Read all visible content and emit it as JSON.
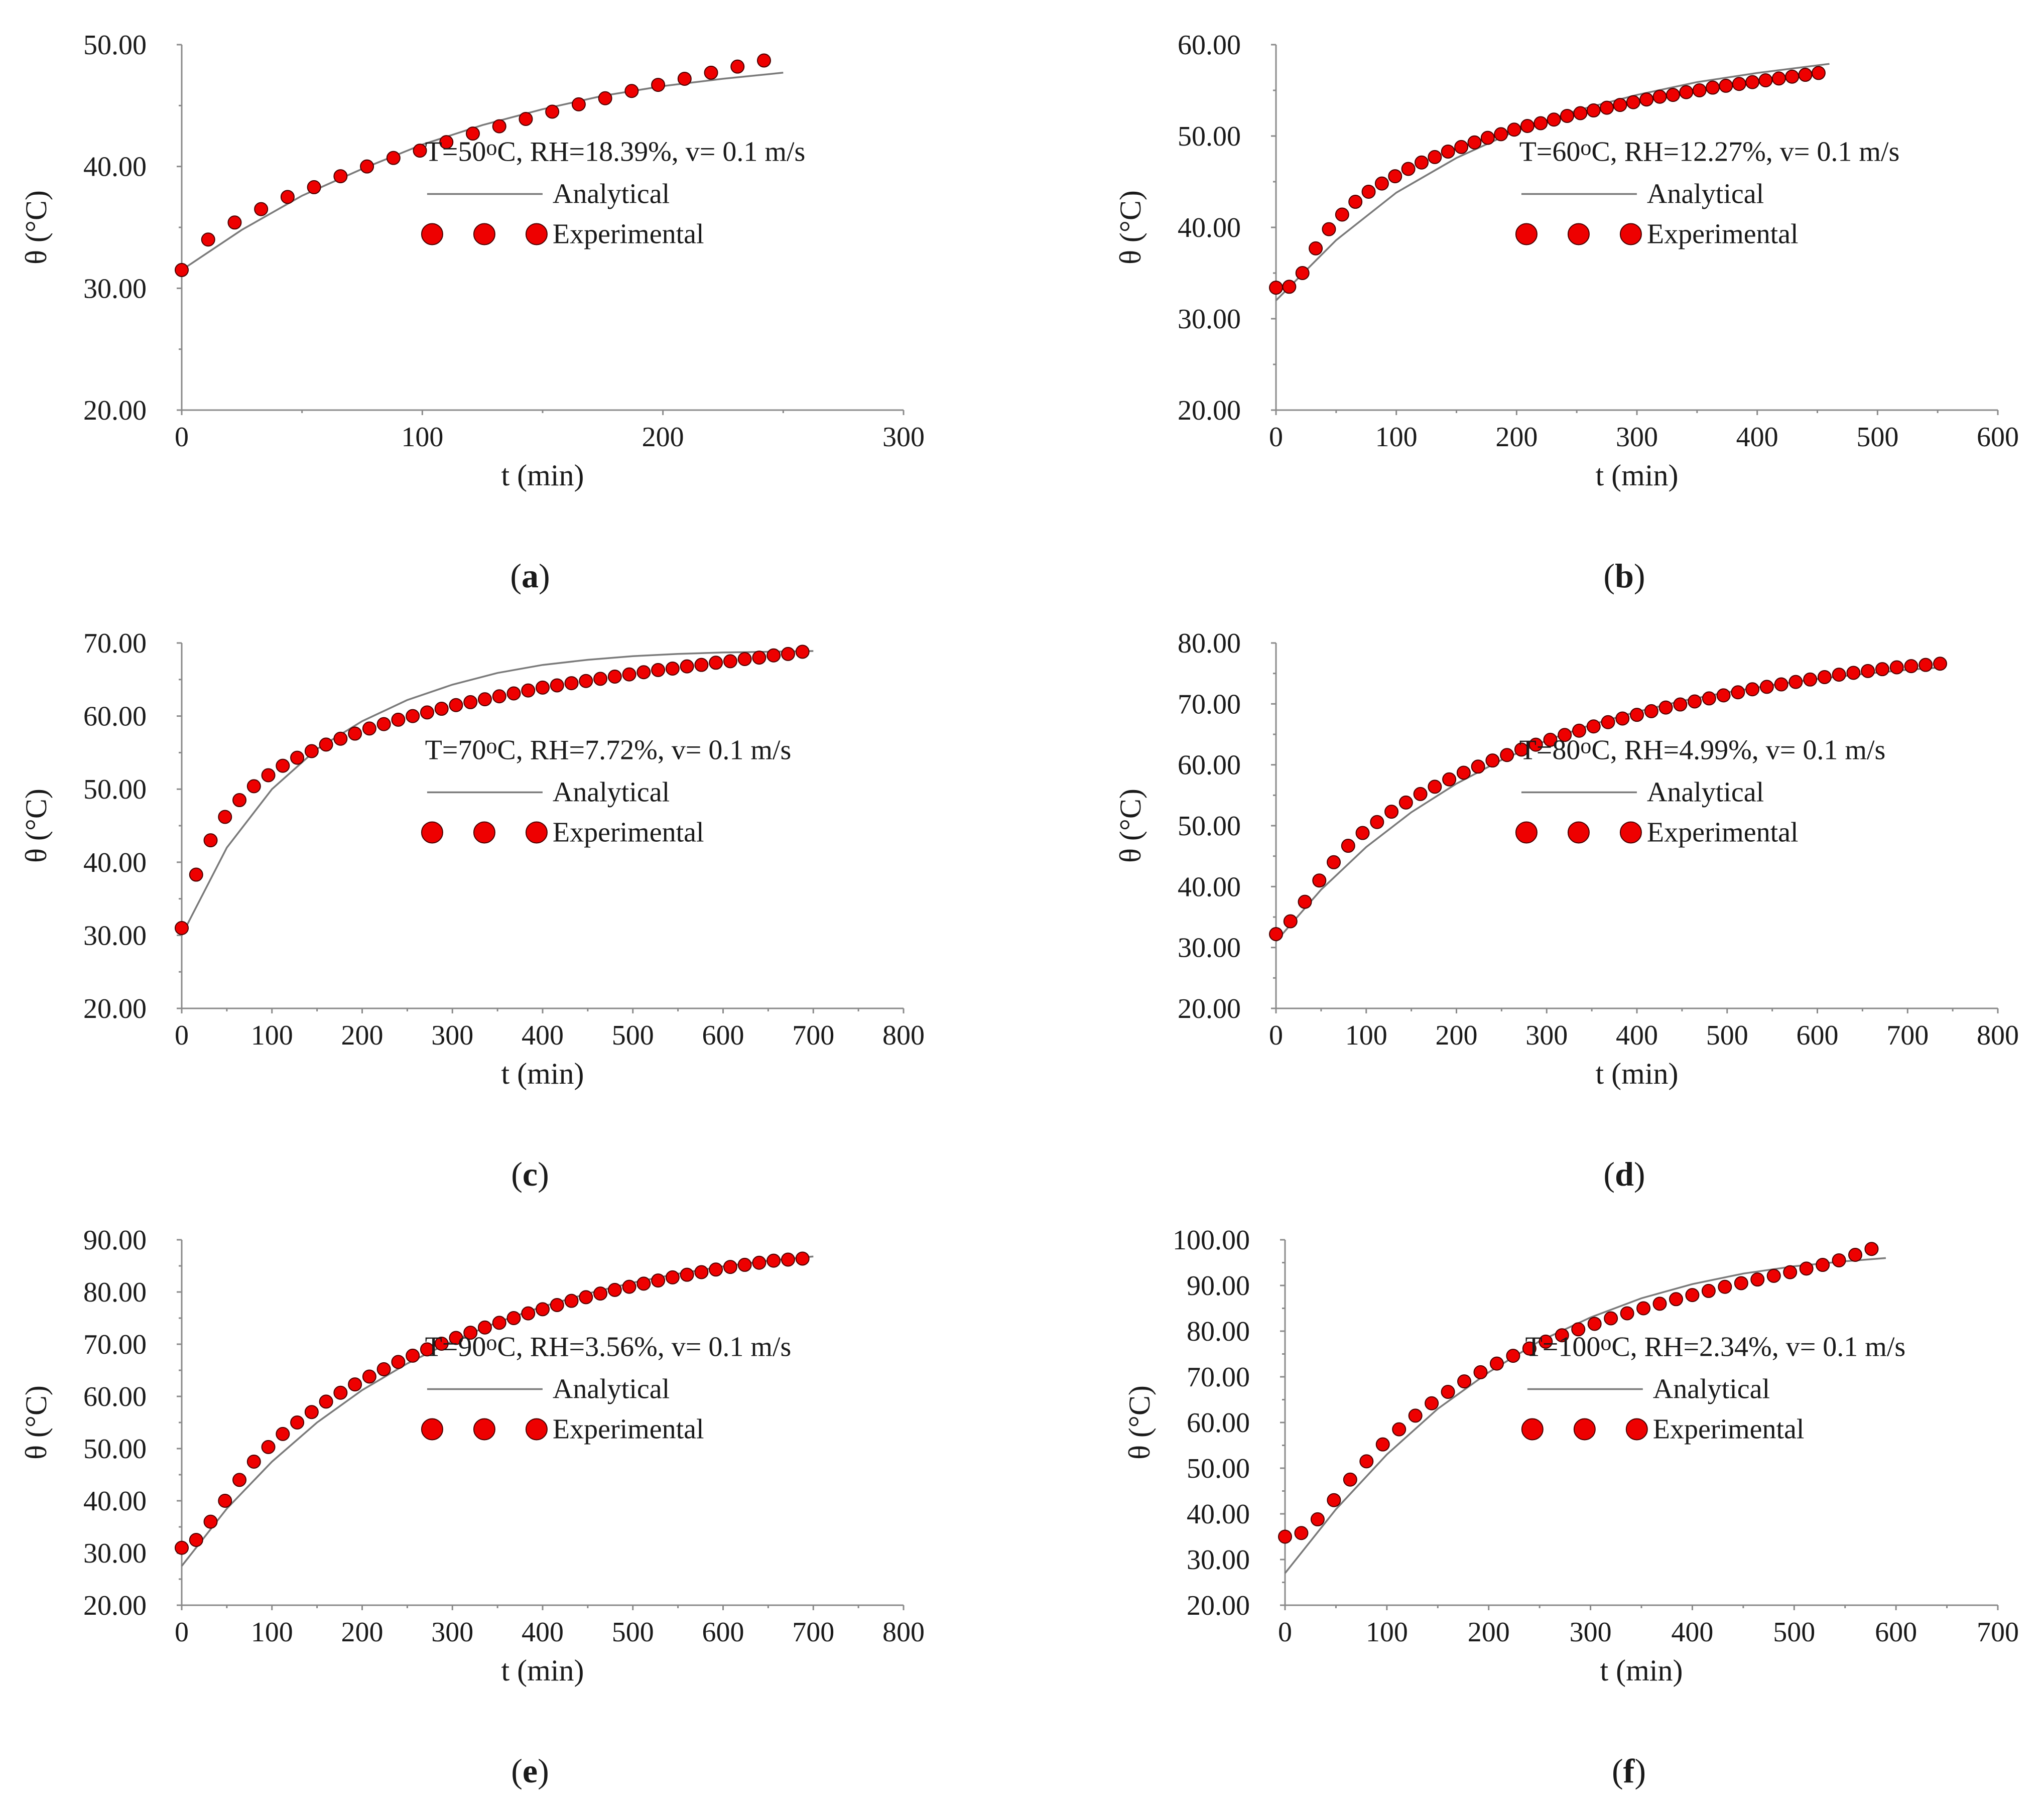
{
  "chart_data": [
    {
      "type": "line",
      "caption": "a",
      "annotation_prefix": "T=50",
      "annotation_super": "o",
      "annotation_suffix": "C, RH=18.39%, v= 0.1 m/s",
      "xlabel": "t (min)",
      "ylabel": "θ (°C)",
      "xlim": [
        0,
        300
      ],
      "ylim": [
        20,
        50
      ],
      "xticks": [
        0,
        100,
        200,
        300
      ],
      "yticks": [
        20,
        30,
        40,
        50
      ],
      "xtick_labels": [
        "0",
        "100",
        "200",
        "300"
      ],
      "ytick_labels": [
        "20.00",
        "30.00",
        "40.00",
        "50.00"
      ],
      "legend": [
        "Analytical",
        "Experimental"
      ],
      "analytical": {
        "x": [
          0,
          25,
          50,
          75,
          100,
          125,
          150,
          175,
          200,
          225,
          250
        ],
        "y": [
          31.5,
          34.8,
          37.6,
          39.8,
          41.8,
          43.4,
          44.7,
          45.8,
          46.6,
          47.2,
          47.7
        ]
      },
      "experimental": {
        "x": [
          0,
          11,
          22,
          33,
          44,
          55,
          66,
          77,
          88,
          99,
          110,
          121,
          132,
          143,
          154,
          165,
          176,
          187,
          198,
          209,
          220,
          231,
          242
        ],
        "y": [
          31.5,
          34.0,
          35.4,
          36.5,
          37.5,
          38.3,
          39.2,
          40.0,
          40.7,
          41.3,
          42.0,
          42.7,
          43.3,
          43.9,
          44.5,
          45.1,
          45.6,
          46.2,
          46.7,
          47.2,
          47.7,
          48.2,
          48.7
        ]
      }
    },
    {
      "type": "line",
      "caption": "b",
      "annotation_prefix": "T=60",
      "annotation_super": "o",
      "annotation_suffix": "C, RH=12.27%, v= 0.1 m/s",
      "xlabel": "t (min)",
      "ylabel": "θ (°C)",
      "xlim": [
        0,
        600
      ],
      "ylim": [
        20,
        60
      ],
      "xticks": [
        0,
        100,
        200,
        300,
        400,
        500,
        600
      ],
      "yticks": [
        20,
        30,
        40,
        50,
        60
      ],
      "xtick_labels": [
        "0",
        "100",
        "200",
        "300",
        "400",
        "500",
        "600"
      ],
      "ytick_labels": [
        "20.00",
        "30.00",
        "40.00",
        "50.00",
        "60.00"
      ],
      "legend": [
        "Analytical",
        "Experimental"
      ],
      "analytical": {
        "x": [
          0,
          50,
          100,
          150,
          200,
          250,
          300,
          350,
          400,
          460
        ],
        "y": [
          32.0,
          38.6,
          43.8,
          47.6,
          50.6,
          52.8,
          54.5,
          55.9,
          56.9,
          57.9
        ]
      },
      "experimental": {
        "x": [
          0,
          11,
          22,
          33,
          44,
          55,
          66,
          77,
          88,
          99,
          110,
          121,
          132,
          143,
          154,
          165,
          176,
          187,
          198,
          209,
          220,
          231,
          242,
          253,
          264,
          275,
          286,
          297,
          308,
          319,
          330,
          341,
          352,
          363,
          374,
          385,
          396,
          407,
          418,
          429,
          440,
          451
        ],
        "y": [
          33.4,
          33.5,
          35.0,
          37.7,
          39.8,
          41.4,
          42.8,
          43.9,
          44.8,
          45.6,
          46.4,
          47.1,
          47.7,
          48.3,
          48.8,
          49.3,
          49.8,
          50.2,
          50.7,
          51.1,
          51.4,
          51.8,
          52.2,
          52.5,
          52.8,
          53.1,
          53.4,
          53.7,
          54.0,
          54.3,
          54.5,
          54.8,
          55.0,
          55.3,
          55.5,
          55.7,
          55.9,
          56.1,
          56.3,
          56.5,
          56.7,
          56.9
        ]
      }
    },
    {
      "type": "line",
      "caption": "c",
      "annotation_prefix": "T=70",
      "annotation_super": "o",
      "annotation_suffix": "C, RH=7.72%, v= 0.1 m/s",
      "xlabel": "t (min)",
      "ylabel": "θ (°C)",
      "xlim": [
        0,
        800
      ],
      "ylim": [
        20,
        70
      ],
      "xticks": [
        0,
        100,
        200,
        300,
        400,
        500,
        600,
        700,
        800
      ],
      "yticks": [
        20,
        30,
        40,
        50,
        60,
        70
      ],
      "xtick_labels": [
        "0",
        "100",
        "200",
        "300",
        "400",
        "500",
        "600",
        "700",
        "800"
      ],
      "ytick_labels": [
        "20.00",
        "30.00",
        "40.00",
        "50.00",
        "60.00",
        "70.00"
      ],
      "legend": [
        "Analytical",
        "Experimental"
      ],
      "analytical": {
        "x": [
          0,
          50,
          100,
          150,
          200,
          250,
          300,
          350,
          400,
          450,
          500,
          550,
          600,
          650,
          700
        ],
        "y": [
          30.0,
          42.0,
          50.0,
          55.5,
          59.3,
          62.2,
          64.3,
          65.9,
          67.0,
          67.7,
          68.2,
          68.5,
          68.7,
          68.8,
          68.9
        ]
      },
      "experimental": {
        "x": [
          0,
          16,
          32,
          48,
          64,
          80,
          96,
          112,
          128,
          144,
          160,
          176,
          192,
          208,
          224,
          240,
          256,
          272,
          288,
          304,
          320,
          336,
          352,
          368,
          384,
          400,
          416,
          432,
          448,
          464,
          480,
          496,
          512,
          528,
          544,
          560,
          576,
          592,
          608,
          624,
          640,
          656,
          672,
          688
        ],
        "y": [
          31.0,
          38.3,
          43.0,
          46.2,
          48.5,
          50.4,
          51.9,
          53.2,
          54.3,
          55.2,
          56.1,
          56.9,
          57.6,
          58.3,
          58.9,
          59.5,
          60.0,
          60.5,
          61.0,
          61.5,
          61.9,
          62.3,
          62.7,
          63.1,
          63.5,
          63.9,
          64.2,
          64.5,
          64.8,
          65.1,
          65.4,
          65.7,
          66.0,
          66.3,
          66.5,
          66.8,
          67.0,
          67.3,
          67.5,
          67.8,
          68.0,
          68.3,
          68.5,
          68.8
        ]
      }
    },
    {
      "type": "line",
      "caption": "d",
      "annotation_prefix": "T=80",
      "annotation_super": "o",
      "annotation_suffix": "C, RH=4.99%, v= 0.1 m/s",
      "xlabel": "t (min)",
      "ylabel": "θ (°C)",
      "xlim": [
        0,
        800
      ],
      "ylim": [
        20,
        80
      ],
      "xticks": [
        0,
        100,
        200,
        300,
        400,
        500,
        600,
        700,
        800
      ],
      "yticks": [
        20,
        30,
        40,
        50,
        60,
        70,
        80
      ],
      "xtick_labels": [
        "0",
        "100",
        "200",
        "300",
        "400",
        "500",
        "600",
        "700",
        "800"
      ],
      "ytick_labels": [
        "20.00",
        "30.00",
        "40.00",
        "50.00",
        "60.00",
        "70.00",
        "80.00"
      ],
      "legend": [
        "Analytical",
        "Experimental"
      ],
      "analytical": {
        "x": [
          0,
          50,
          100,
          150,
          200,
          250,
          300,
          350,
          400,
          450,
          500,
          550,
          600,
          650,
          700,
          740
        ],
        "y": [
          31.0,
          39.5,
          46.5,
          52.2,
          56.9,
          60.8,
          64.0,
          66.6,
          68.7,
          70.5,
          71.9,
          73.1,
          74.1,
          74.9,
          75.6,
          76.0
        ]
      },
      "experimental": {
        "x": [
          0,
          16,
          32,
          48,
          64,
          80,
          96,
          112,
          128,
          144,
          160,
          176,
          192,
          208,
          224,
          240,
          256,
          272,
          288,
          304,
          320,
          336,
          352,
          368,
          384,
          400,
          416,
          432,
          448,
          464,
          480,
          496,
          512,
          528,
          544,
          560,
          576,
          592,
          608,
          624,
          640,
          656,
          672,
          688,
          704,
          720,
          736
        ],
        "y": [
          32.2,
          34.3,
          37.5,
          41.0,
          44.0,
          46.7,
          48.8,
          50.6,
          52.3,
          53.8,
          55.2,
          56.4,
          57.6,
          58.7,
          59.7,
          60.7,
          61.6,
          62.5,
          63.3,
          64.1,
          64.9,
          65.6,
          66.3,
          67.0,
          67.6,
          68.2,
          68.8,
          69.4,
          69.9,
          70.4,
          70.9,
          71.4,
          71.9,
          72.4,
          72.8,
          73.2,
          73.6,
          74.0,
          74.4,
          74.8,
          75.1,
          75.4,
          75.7,
          76.0,
          76.2,
          76.4,
          76.6
        ]
      }
    },
    {
      "type": "line",
      "caption": "e",
      "annotation_prefix": "T=90",
      "annotation_super": "o",
      "annotation_suffix": "C, RH=3.56%, v= 0.1 m/s",
      "xlabel": "t (min)",
      "ylabel": "θ (°C)",
      "xlim": [
        0,
        800
      ],
      "ylim": [
        20,
        90
      ],
      "xticks": [
        0,
        100,
        200,
        300,
        400,
        500,
        600,
        700,
        800
      ],
      "yticks": [
        20,
        30,
        40,
        50,
        60,
        70,
        80,
        90
      ],
      "xtick_labels": [
        "0",
        "100",
        "200",
        "300",
        "400",
        "500",
        "600",
        "700",
        "800"
      ],
      "ytick_labels": [
        "20.00",
        "30.00",
        "40.00",
        "50.00",
        "60.00",
        "70.00",
        "80.00",
        "90.00"
      ],
      "legend": [
        "Analytical",
        "Experimental"
      ],
      "analytical": {
        "x": [
          0,
          50,
          100,
          150,
          200,
          250,
          300,
          350,
          400,
          450,
          500,
          550,
          600,
          650,
          700
        ],
        "y": [
          27.5,
          38.5,
          47.5,
          55.0,
          61.2,
          66.3,
          70.6,
          74.2,
          77.2,
          79.7,
          81.8,
          83.5,
          84.9,
          86.0,
          86.8
        ]
      },
      "experimental": {
        "x": [
          0,
          16,
          32,
          48,
          64,
          80,
          96,
          112,
          128,
          144,
          160,
          176,
          192,
          208,
          224,
          240,
          256,
          272,
          288,
          304,
          320,
          336,
          352,
          368,
          384,
          400,
          416,
          432,
          448,
          464,
          480,
          496,
          512,
          528,
          544,
          560,
          576,
          592,
          608,
          624,
          640,
          656,
          672,
          688
        ],
        "y": [
          31.0,
          32.5,
          36.0,
          40.0,
          44.0,
          47.5,
          50.3,
          52.8,
          55.0,
          57.0,
          59.0,
          60.7,
          62.3,
          63.8,
          65.2,
          66.6,
          67.8,
          69.0,
          70.1,
          71.2,
          72.2,
          73.2,
          74.1,
          75.0,
          75.9,
          76.7,
          77.5,
          78.3,
          79.0,
          79.7,
          80.4,
          81.0,
          81.6,
          82.2,
          82.8,
          83.3,
          83.8,
          84.3,
          84.8,
          85.2,
          85.6,
          86.0,
          86.2,
          86.4
        ]
      }
    },
    {
      "type": "line",
      "caption": "f",
      "annotation_prefix": "T=100",
      "annotation_super": "o",
      "annotation_suffix": "C, RH=2.34%, v= 0.1 m/s",
      "xlabel": "t (min)",
      "ylabel": "θ (°C)",
      "xlim": [
        0,
        700
      ],
      "ylim": [
        20,
        100
      ],
      "xticks": [
        0,
        100,
        200,
        300,
        400,
        500,
        600,
        700
      ],
      "yticks": [
        20,
        30,
        40,
        50,
        60,
        70,
        80,
        90,
        100
      ],
      "xtick_labels": [
        "0",
        "100",
        "200",
        "300",
        "400",
        "500",
        "600",
        "700"
      ],
      "ytick_labels": [
        "20.00",
        "30.00",
        "40.00",
        "50.00",
        "60.00",
        "70.00",
        "80.00",
        "90.00",
        "100.00"
      ],
      "legend": [
        "Analytical",
        "Experimental"
      ],
      "analytical": {
        "x": [
          0,
          50,
          100,
          150,
          200,
          250,
          300,
          350,
          400,
          450,
          500,
          550,
          590
        ],
        "y": [
          27.0,
          41.0,
          53.0,
          63.0,
          71.0,
          77.8,
          83.0,
          87.2,
          90.3,
          92.6,
          94.2,
          95.3,
          96.0
        ]
      },
      "experimental": {
        "x": [
          0,
          16,
          32,
          48,
          64,
          80,
          96,
          112,
          128,
          144,
          160,
          176,
          192,
          208,
          224,
          240,
          256,
          272,
          288,
          304,
          320,
          336,
          352,
          368,
          384,
          400,
          416,
          432,
          448,
          464,
          480,
          496,
          512,
          528,
          544,
          560,
          576
        ],
        "y": [
          35.0,
          35.8,
          38.8,
          43.0,
          47.5,
          51.5,
          55.2,
          58.5,
          61.5,
          64.2,
          66.7,
          69.0,
          71.0,
          72.9,
          74.6,
          76.2,
          77.7,
          79.1,
          80.4,
          81.6,
          82.8,
          83.9,
          85.0,
          86.0,
          87.0,
          87.9,
          88.8,
          89.7,
          90.5,
          91.3,
          92.1,
          92.9,
          93.7,
          94.5,
          95.5,
          96.7,
          98.0
        ]
      }
    }
  ]
}
